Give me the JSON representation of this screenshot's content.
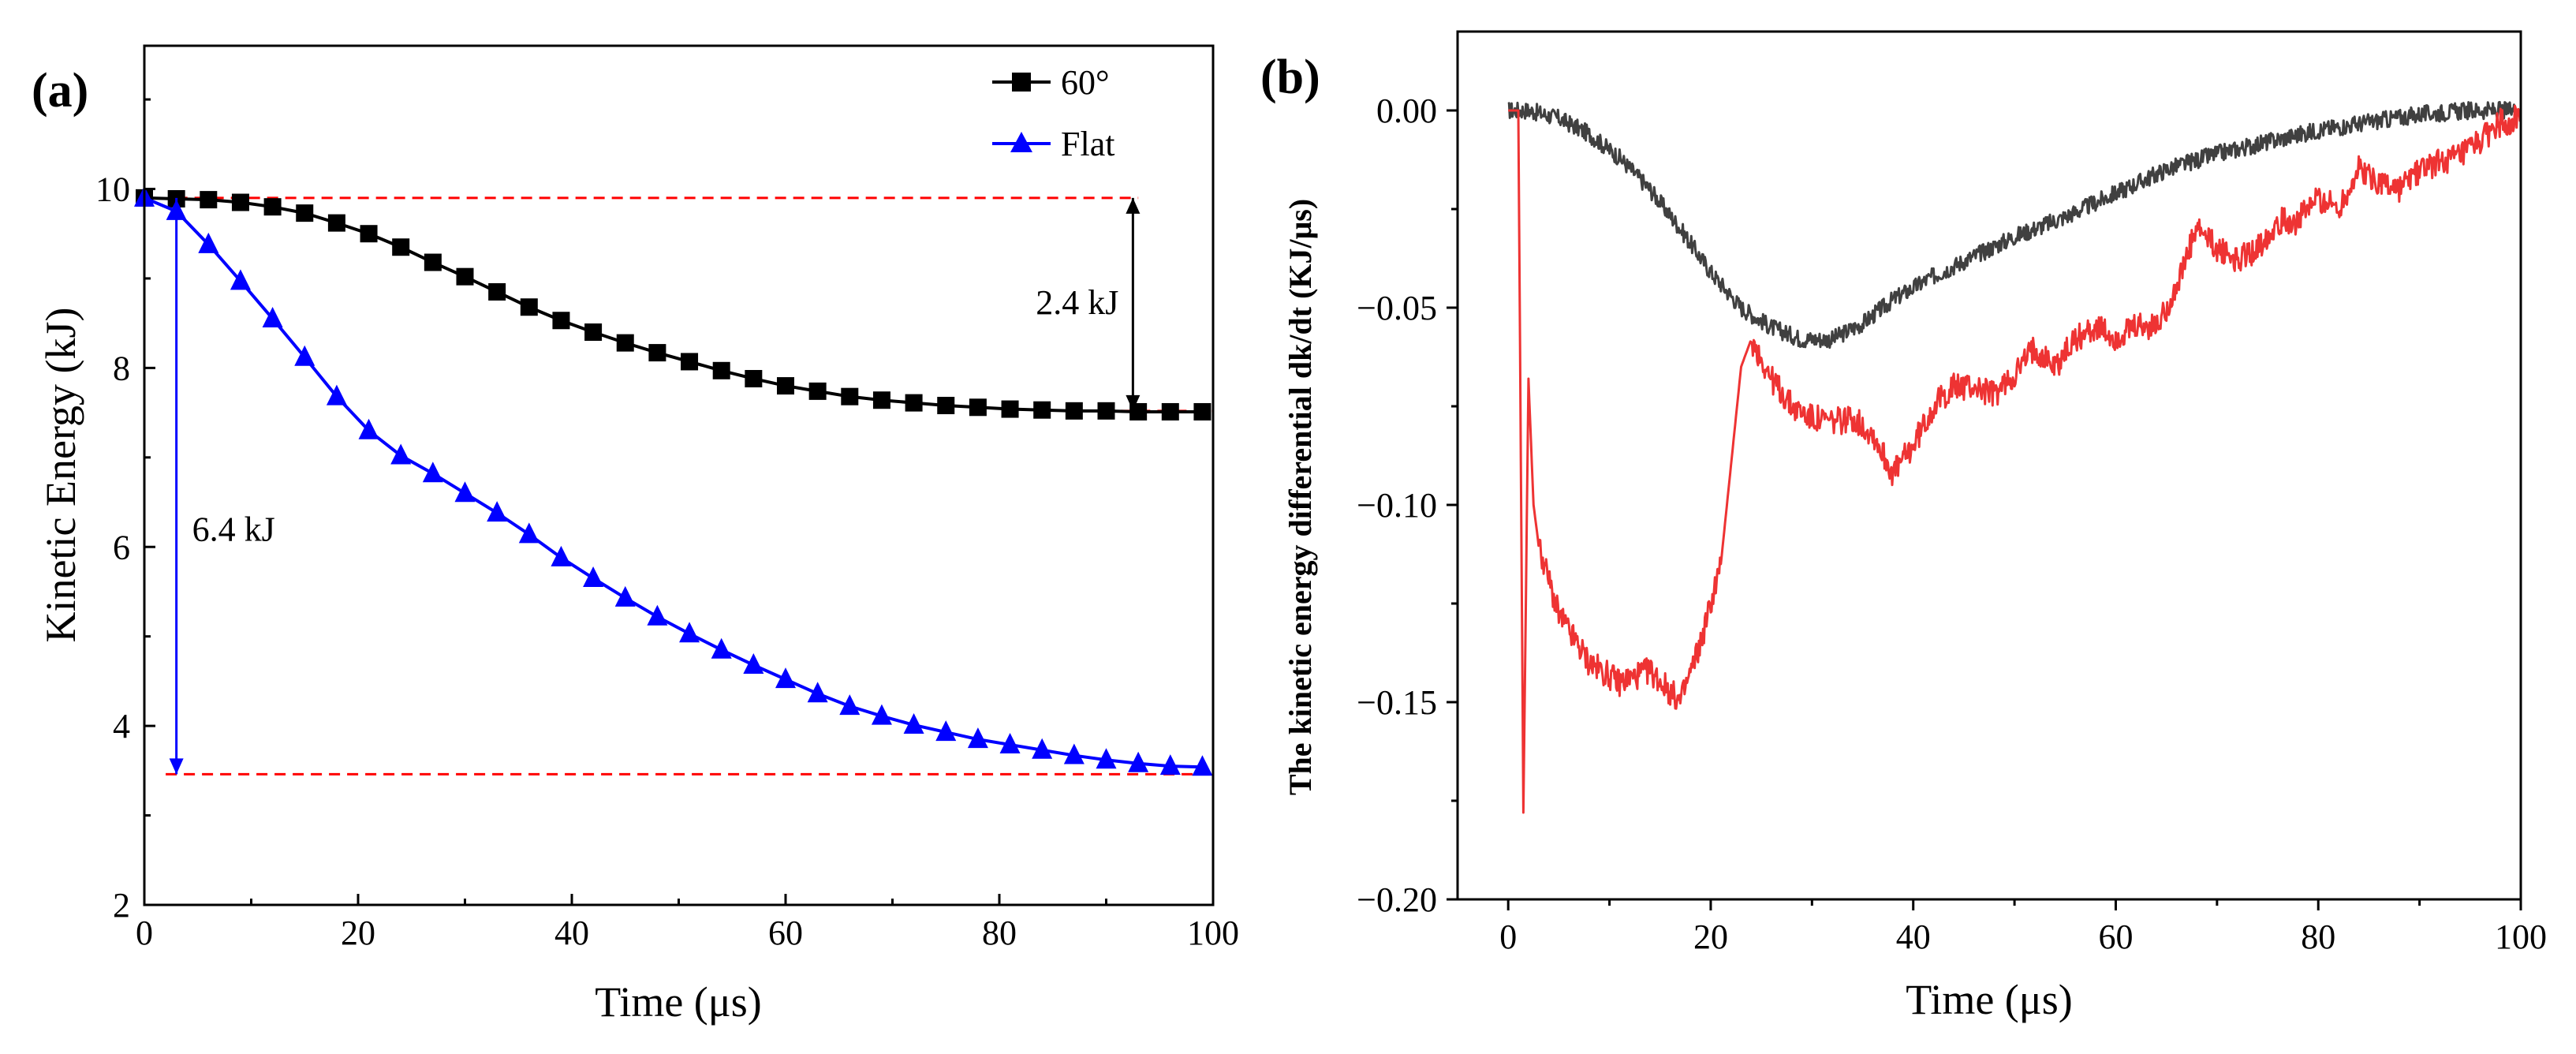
{
  "chart_data": [
    {
      "type": "line",
      "panel_label": "(a)",
      "xlabel": "Time (μs)",
      "ylabel": "Kinetic Energy (kJ)",
      "xlim": [
        0,
        100
      ],
      "ylim": [
        2,
        11.6
      ],
      "xticks": [
        0,
        20,
        40,
        60,
        80,
        100
      ],
      "yticks": [
        2,
        4,
        6,
        8,
        10
      ],
      "xtick_labels": [
        "0",
        "20",
        "40",
        "60",
        "80",
        "100"
      ],
      "ytick_labels": [
        "2",
        "4",
        "6",
        "8",
        "10"
      ],
      "legend_position": "top-right",
      "series": [
        {
          "name": "60°",
          "color": "#000000",
          "marker": "square",
          "x": [
            0,
            3,
            6,
            9,
            12,
            15,
            18,
            21,
            24,
            27,
            30,
            33,
            36,
            39,
            42,
            45,
            48,
            51,
            54,
            57,
            60,
            63,
            66,
            69,
            72,
            75,
            78,
            81,
            84,
            87,
            90,
            93,
            96,
            99
          ],
          "values": [
            9.9,
            9.89,
            9.88,
            9.85,
            9.8,
            9.73,
            9.62,
            9.5,
            9.35,
            9.18,
            9.02,
            8.85,
            8.68,
            8.53,
            8.4,
            8.28,
            8.17,
            8.07,
            7.97,
            7.88,
            7.8,
            7.74,
            7.68,
            7.64,
            7.61,
            7.58,
            7.56,
            7.54,
            7.53,
            7.52,
            7.52,
            7.51,
            7.51,
            7.51
          ]
        },
        {
          "name": "Flat",
          "color": "#0000ff",
          "marker": "triangle",
          "x": [
            0,
            3,
            6,
            9,
            12,
            15,
            18,
            21,
            24,
            27,
            30,
            33,
            36,
            39,
            42,
            45,
            48,
            51,
            54,
            57,
            60,
            63,
            66,
            69,
            72,
            75,
            78,
            81,
            84,
            87,
            90,
            93,
            96,
            99
          ],
          "values": [
            9.9,
            9.75,
            9.38,
            8.97,
            8.55,
            8.12,
            7.68,
            7.3,
            7.02,
            6.82,
            6.6,
            6.38,
            6.14,
            5.88,
            5.65,
            5.43,
            5.22,
            5.03,
            4.85,
            4.68,
            4.52,
            4.36,
            4.22,
            4.11,
            4.01,
            3.93,
            3.85,
            3.79,
            3.73,
            3.67,
            3.62,
            3.58,
            3.55,
            3.54
          ]
        }
      ],
      "reference_lines": [
        {
          "value": 9.9,
          "color": "#ff0000",
          "x_start": 3,
          "x_end": 93
        },
        {
          "value": 7.52,
          "color": "#ff0000",
          "x_start": 88,
          "x_end": 100
        },
        {
          "value": 3.46,
          "color": "#ff0000",
          "x_start": 2,
          "x_end": 100
        }
      ],
      "annotations": [
        {
          "text": "2.4 kJ",
          "x": 92.5,
          "y_from": 9.9,
          "y_to": 7.52,
          "color": "#000000"
        },
        {
          "text": "6.4 kJ",
          "x": 3,
          "y_from": 9.9,
          "y_to": 3.46,
          "color": "#0000ff"
        }
      ]
    },
    {
      "type": "line",
      "panel_label": "(b)",
      "xlabel": "Time (μs)",
      "ylabel": "The kinetic energy differential dk/dt (KJ/μs)",
      "xlim": [
        -5,
        100
      ],
      "ylim": [
        -0.2,
        0.02
      ],
      "xticks": [
        0,
        20,
        40,
        60,
        80,
        100
      ],
      "yticks": [
        0.0,
        -0.05,
        -0.1,
        -0.15,
        -0.2
      ],
      "xtick_labels": [
        "0",
        "20",
        "40",
        "60",
        "80",
        "100"
      ],
      "ytick_labels": [
        "0.00",
        "−0.05",
        "−0.10",
        "−0.15",
        "−0.20"
      ],
      "series": [
        {
          "name": "60°",
          "color": "#404040",
          "x": [
            0,
            2,
            5,
            8,
            11,
            14,
            17,
            20,
            23,
            26,
            29,
            32,
            35,
            38,
            42,
            46,
            50,
            55,
            60,
            65,
            70,
            75,
            80,
            85,
            90,
            95,
            100
          ],
          "values": [
            0.0,
            0.0,
            -0.002,
            -0.006,
            -0.012,
            -0.02,
            -0.03,
            -0.041,
            -0.05,
            -0.055,
            -0.058,
            -0.058,
            -0.054,
            -0.048,
            -0.042,
            -0.037,
            -0.032,
            -0.027,
            -0.021,
            -0.015,
            -0.011,
            -0.008,
            -0.005,
            -0.003,
            -0.001,
            0.0,
            0.0
          ]
        },
        {
          "name": "Flat",
          "color": "#ee3333",
          "x": [
            0,
            1,
            1.5,
            2,
            2.5,
            3,
            5,
            8,
            11,
            14,
            17,
            19,
            21,
            22,
            23,
            24,
            26,
            28,
            30,
            32,
            34,
            36,
            38,
            40,
            42,
            44,
            46,
            48,
            50,
            52,
            54,
            56,
            58,
            60,
            62,
            64,
            66,
            68,
            70,
            72,
            74,
            76,
            78,
            80,
            82,
            84,
            86,
            88,
            90,
            92,
            94,
            96,
            98,
            100
          ],
          "values": [
            0.0,
            0.0,
            -0.178,
            -0.068,
            -0.1,
            -0.11,
            -0.128,
            -0.14,
            -0.145,
            -0.142,
            -0.15,
            -0.135,
            -0.115,
            -0.09,
            -0.065,
            -0.058,
            -0.068,
            -0.075,
            -0.078,
            -0.079,
            -0.078,
            -0.082,
            -0.092,
            -0.085,
            -0.075,
            -0.07,
            -0.07,
            -0.072,
            -0.067,
            -0.06,
            -0.065,
            -0.058,
            -0.055,
            -0.058,
            -0.055,
            -0.055,
            -0.045,
            -0.03,
            -0.035,
            -0.038,
            -0.035,
            -0.028,
            -0.028,
            -0.022,
            -0.025,
            -0.015,
            -0.018,
            -0.02,
            -0.015,
            -0.013,
            -0.012,
            -0.008,
            -0.003,
            -0.002
          ]
        }
      ]
    }
  ]
}
